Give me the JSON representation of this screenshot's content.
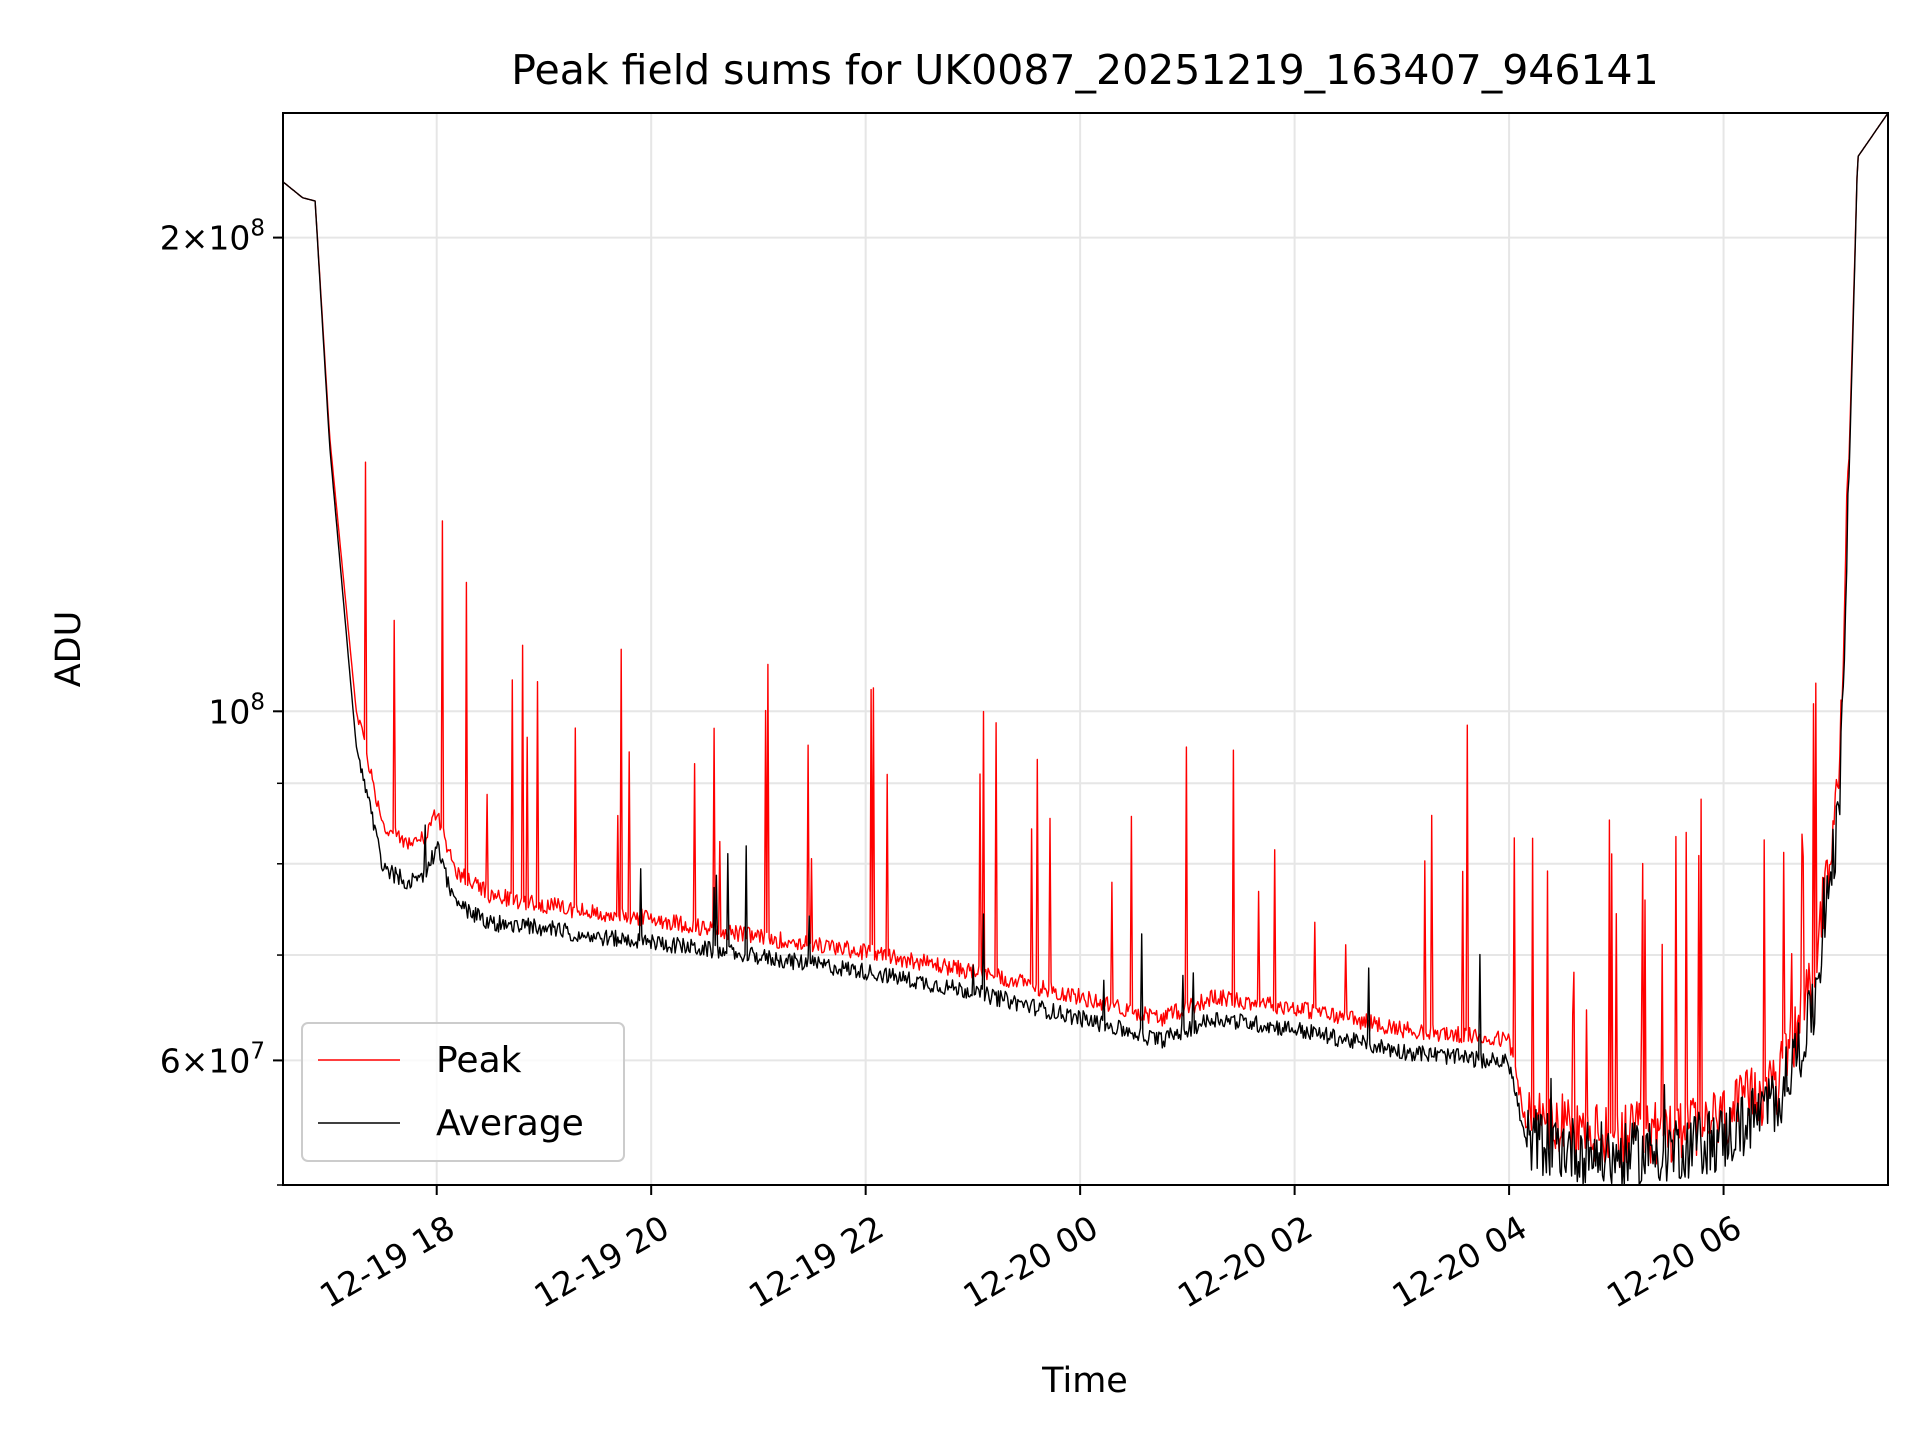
{
  "chart_data": {
    "type": "line",
    "title": "Peak field sums for UK0087_20251219_163407_946141",
    "xlabel": "Time",
    "ylabel": "ADU",
    "yscale": "log",
    "xlim": [
      "2025-12-19 16:34",
      "2025-12-20 07:32"
    ],
    "ylim": [
      50000000,
      240000000
    ],
    "grid": true,
    "legend_position": "lower-left",
    "x_ticks": [
      "12-19 18",
      "12-19 20",
      "12-19 22",
      "12-20 00",
      "12-20 02",
      "12-20 04",
      "12-20 06"
    ],
    "y_ticks": [
      {
        "value": 200000000,
        "mantissa": "2",
        "exponent": "8"
      },
      {
        "value": 100000000,
        "mantissa": "",
        "exponent": "8"
      },
      {
        "value": 60000000,
        "mantissa": "6",
        "exponent": "7"
      }
    ],
    "series": [
      {
        "name": "Peak",
        "color": "#ff0000",
        "x": [
          "2025-12-19 16:34",
          "2025-12-19 16:45",
          "2025-12-19 16:52",
          "2025-12-19 17:00",
          "2025-12-19 17:15",
          "2025-12-19 17:30",
          "2025-12-19 17:45",
          "2025-12-19 17:55",
          "2025-12-19 18:00",
          "2025-12-19 18:10",
          "2025-12-19 18:30",
          "2025-12-19 19:00",
          "2025-12-19 19:30",
          "2025-12-19 20:00",
          "2025-12-19 21:00",
          "2025-12-19 22:00",
          "2025-12-19 23:00",
          "2025-12-20 00:00",
          "2025-12-20 00:45",
          "2025-12-20 01:15",
          "2025-12-20 02:00",
          "2025-12-20 03:00",
          "2025-12-20 04:00",
          "2025-12-20 04:10",
          "2025-12-20 05:00",
          "2025-12-20 06:00",
          "2025-12-20 06:30",
          "2025-12-20 06:50",
          "2025-12-20 07:05",
          "2025-12-20 07:15",
          "2025-12-20 07:32"
        ],
        "values": [
          217000000,
          212000000,
          211000000,
          150000000,
          100000000,
          84000000,
          82000000,
          83000000,
          86000000,
          79000000,
          76000000,
          75000000,
          74000000,
          73500000,
          71500000,
          70000000,
          68000000,
          65500000,
          63500000,
          65500000,
          64500000,
          62500000,
          61500000,
          54000000,
          52500000,
          54000000,
          57000000,
          66000000,
          90000000,
          225000000,
          240000000
        ]
      },
      {
        "name": "Average",
        "color": "#000000",
        "x": [
          "2025-12-19 16:34",
          "2025-12-19 16:45",
          "2025-12-19 16:52",
          "2025-12-19 17:00",
          "2025-12-19 17:15",
          "2025-12-19 17:30",
          "2025-12-19 17:45",
          "2025-12-19 17:55",
          "2025-12-19 18:00",
          "2025-12-19 18:10",
          "2025-12-19 18:30",
          "2025-12-19 19:00",
          "2025-12-19 19:30",
          "2025-12-19 20:00",
          "2025-12-19 21:00",
          "2025-12-19 22:00",
          "2025-12-19 23:00",
          "2025-12-20 00:00",
          "2025-12-20 00:45",
          "2025-12-20 01:15",
          "2025-12-20 02:00",
          "2025-12-20 03:00",
          "2025-12-20 04:00",
          "2025-12-20 04:10",
          "2025-12-20 05:00",
          "2025-12-20 06:00",
          "2025-12-20 06:30",
          "2025-12-20 06:50",
          "2025-12-20 07:05",
          "2025-12-20 07:15",
          "2025-12-20 07:32"
        ],
        "values": [
          217000000,
          212000000,
          211000000,
          148000000,
          95000000,
          79000000,
          77500000,
          78500000,
          82000000,
          75000000,
          73000000,
          72500000,
          71500000,
          71000000,
          69500000,
          68000000,
          66000000,
          63500000,
          61500000,
          63500000,
          62500000,
          60500000,
          59500000,
          52500000,
          51000000,
          52500000,
          55500000,
          63000000,
          85000000,
          225000000,
          240000000
        ]
      }
    ]
  }
}
